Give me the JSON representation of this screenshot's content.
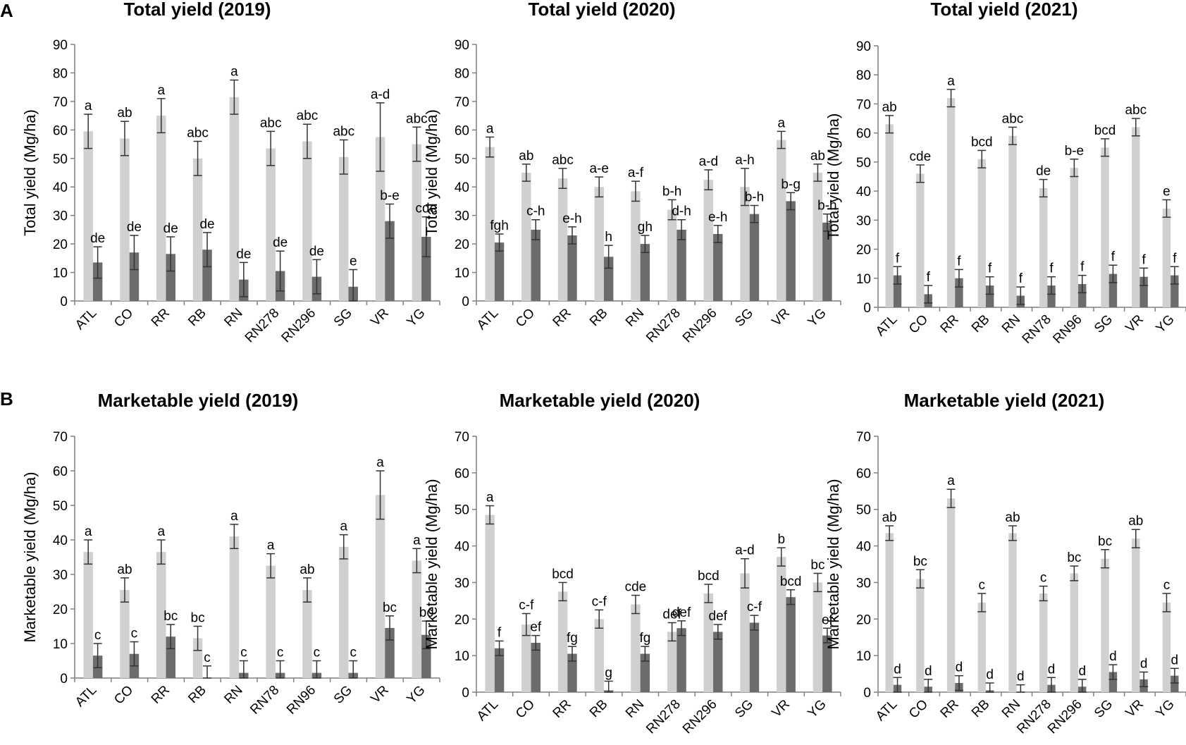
{
  "panel_labels": [
    "A",
    "B"
  ],
  "colors": {
    "light_bar": "#d0d0d0",
    "dark_bar": "#6c6c6c",
    "axis": "#7f7f7f",
    "err": "#333333"
  },
  "chart_data": [
    {
      "type": "bar",
      "title": "Total yield (2019)",
      "ylabel": "Total yield (Mg/ha)",
      "ylim": [
        0,
        90
      ],
      "yticks": [
        0,
        10,
        20,
        30,
        40,
        50,
        60,
        70,
        80,
        90
      ],
      "categories": [
        "ATL",
        "CO",
        "RR",
        "RB",
        "RN",
        "RN278",
        "RN296",
        "SG",
        "VR",
        "YG"
      ],
      "series": [
        {
          "name": "light",
          "values": [
            59.5,
            57,
            65,
            50,
            71.5,
            53.5,
            56,
            50.5,
            57.5,
            55
          ],
          "errors": [
            6,
            6,
            6,
            6,
            6,
            6,
            6,
            6,
            12,
            6
          ],
          "labels": [
            "a",
            "ab",
            "a",
            "abc",
            "a",
            "abc",
            "abc",
            "abc",
            "a-d",
            "abc"
          ]
        },
        {
          "name": "dark",
          "values": [
            13.5,
            17,
            16.5,
            18,
            7.5,
            10.5,
            8.5,
            5,
            28,
            22.5
          ],
          "errors": [
            5.5,
            6,
            6,
            6,
            6,
            7,
            6,
            6,
            6,
            7
          ],
          "labels": [
            "de",
            "de",
            "de",
            "de",
            "de",
            "de",
            "de",
            "e",
            "b-e",
            "cde"
          ]
        }
      ]
    },
    {
      "type": "bar",
      "title": "Total yield (2020)",
      "ylabel": "Total yield (Mg/ha)",
      "ylim": [
        0,
        90
      ],
      "yticks": [
        0,
        10,
        20,
        30,
        40,
        50,
        60,
        70,
        80,
        90
      ],
      "categories": [
        "ATL",
        "CO",
        "RR",
        "RB",
        "RN",
        "RN278",
        "RN296",
        "SG",
        "VR",
        "YG"
      ],
      "series": [
        {
          "name": "light",
          "values": [
            54,
            45,
            43,
            40,
            38.5,
            32,
            42.5,
            40,
            56.5,
            45
          ],
          "errors": [
            3.5,
            3,
            3.5,
            3.5,
            3.5,
            3.5,
            3.5,
            6.5,
            3,
            3
          ],
          "labels": [
            "a",
            "ab",
            "abc",
            "a-e",
            "a-f",
            "b-h",
            "a-d",
            "a-h",
            "a",
            "ab"
          ]
        },
        {
          "name": "dark",
          "values": [
            20.5,
            25,
            23,
            15.5,
            20,
            25,
            23.5,
            30.5,
            35,
            27.5
          ],
          "errors": [
            3,
            3.5,
            3,
            4,
            3,
            3.5,
            3,
            3,
            3,
            3
          ],
          "labels": [
            "fgh",
            "c-h",
            "e-h",
            "h",
            "gh",
            "d-h",
            "e-h",
            "b-h",
            "b-g",
            "b-h"
          ]
        }
      ]
    },
    {
      "type": "bar",
      "title": "Total yield (2021)",
      "ylabel": "Total yield (Mg/ha)",
      "ylim": [
        0,
        90
      ],
      "yticks": [
        0,
        10,
        20,
        30,
        40,
        50,
        60,
        70,
        80,
        90
      ],
      "categories": [
        "ATL",
        "CO",
        "RR",
        "RB",
        "RN",
        "RN78",
        "RN96",
        "SG",
        "VR",
        "YG"
      ],
      "series": [
        {
          "name": "light",
          "values": [
            63,
            46,
            72,
            51,
            59,
            41,
            48,
            55,
            62,
            34
          ],
          "errors": [
            3,
            3,
            3,
            3,
            3,
            3,
            3,
            3,
            3,
            3
          ],
          "labels": [
            "ab",
            "cde",
            "a",
            "bcd",
            "abc",
            "de",
            "b-e",
            "bcd",
            "abc",
            "e"
          ]
        },
        {
          "name": "dark",
          "values": [
            11,
            4.5,
            10,
            7.5,
            4,
            7.5,
            8,
            11.5,
            10.5,
            11
          ],
          "errors": [
            3,
            3,
            3,
            3,
            3,
            3,
            3,
            3,
            3,
            3
          ],
          "labels": [
            "f",
            "f",
            "f",
            "f",
            "f",
            "f",
            "f",
            "f",
            "f",
            "f"
          ]
        }
      ]
    },
    {
      "type": "bar",
      "title": "Marketable  yield (2019)",
      "ylabel": "Marketable yield (Mg/ha)",
      "ylim": [
        0,
        70
      ],
      "yticks": [
        0,
        10,
        20,
        30,
        40,
        50,
        60,
        70
      ],
      "categories": [
        "ATL",
        "CO",
        "RR",
        "RB",
        "RN",
        "RN78",
        "RN96",
        "SG",
        "VR",
        "YG"
      ],
      "series": [
        {
          "name": "light",
          "values": [
            36.5,
            25.5,
            36.5,
            11.5,
            41,
            32.5,
            25.5,
            38,
            53,
            34
          ],
          "errors": [
            3.5,
            3.5,
            3.5,
            3.5,
            3.5,
            3.5,
            3.5,
            3.5,
            7,
            3.5
          ],
          "labels": [
            "a",
            "ab",
            "a",
            "bc",
            "a",
            "a",
            "ab",
            "a",
            "a",
            "a"
          ]
        },
        {
          "name": "dark",
          "values": [
            6.5,
            7,
            12,
            0,
            1.5,
            1.5,
            1.5,
            1.5,
            14.5,
            12.5
          ],
          "errors": [
            3.5,
            3.5,
            3.5,
            3.5,
            3.5,
            3.5,
            3.5,
            3.5,
            3.5,
            4
          ],
          "labels": [
            "c",
            "c",
            "bc",
            "c",
            "c",
            "c",
            "c",
            "c",
            "bc",
            "bc"
          ]
        }
      ]
    },
    {
      "type": "bar",
      "title": "Marketable yield (2020)",
      "ylabel": "Marketable yield (Mg/ha)",
      "ylim": [
        0,
        70
      ],
      "yticks": [
        0,
        10,
        20,
        30,
        40,
        50,
        60,
        70
      ],
      "categories": [
        "ATL",
        "CO",
        "RR",
        "RB",
        "RN",
        "RN278",
        "RN296",
        "SG",
        "VR",
        "YG"
      ],
      "series": [
        {
          "name": "light",
          "values": [
            48.5,
            18.5,
            27.5,
            20,
            24,
            16.5,
            27,
            32.5,
            37,
            30
          ],
          "errors": [
            2.5,
            3,
            2.5,
            2.5,
            2.5,
            2.5,
            2.5,
            4,
            2.5,
            2.5
          ],
          "labels": [
            "a",
            "c-f",
            "bcd",
            "c-f",
            "cde",
            "def",
            "bcd",
            "a-d",
            "b",
            "bc"
          ]
        },
        {
          "name": "dark",
          "values": [
            12,
            13.5,
            10.5,
            0.5,
            10.5,
            17.5,
            16.5,
            19,
            26,
            15.5
          ],
          "errors": [
            2,
            2,
            2,
            2.5,
            2,
            2,
            2,
            2,
            2,
            2
          ],
          "labels": [
            "f",
            "ef",
            "fg",
            "g",
            "fg",
            "def",
            "def",
            "c-f",
            "bcd",
            "ef"
          ]
        }
      ]
    },
    {
      "type": "bar",
      "title": "Marketable yield (2021)",
      "ylabel": "Marketable  yield (Mg/ha)",
      "ylim": [
        0,
        70
      ],
      "yticks": [
        0,
        10,
        20,
        30,
        40,
        50,
        60,
        70
      ],
      "categories": [
        "ATL",
        "CO",
        "RR",
        "RB",
        "RN",
        "RN278",
        "RN296",
        "SG",
        "VR",
        "YG"
      ],
      "series": [
        {
          "name": "light",
          "values": [
            43.5,
            31,
            53,
            24.5,
            43.5,
            27,
            32.5,
            36.5,
            42,
            24.5
          ],
          "errors": [
            2,
            2.5,
            2.5,
            2.5,
            2,
            2,
            2,
            2.5,
            2.5,
            2.5
          ],
          "labels": [
            "ab",
            "bc",
            "a",
            "c",
            "ab",
            "c",
            "bc",
            "bc",
            "ab",
            "c"
          ]
        },
        {
          "name": "dark",
          "values": [
            2,
            1.5,
            2.5,
            0.5,
            0,
            2,
            1.5,
            5.5,
            3.5,
            4.5
          ],
          "errors": [
            2,
            2,
            2,
            2,
            2,
            2,
            2,
            2,
            2,
            2
          ],
          "labels": [
            "d",
            "d",
            "d",
            "d",
            "d",
            "d",
            "d",
            "d",
            "d",
            "d"
          ]
        }
      ]
    }
  ]
}
